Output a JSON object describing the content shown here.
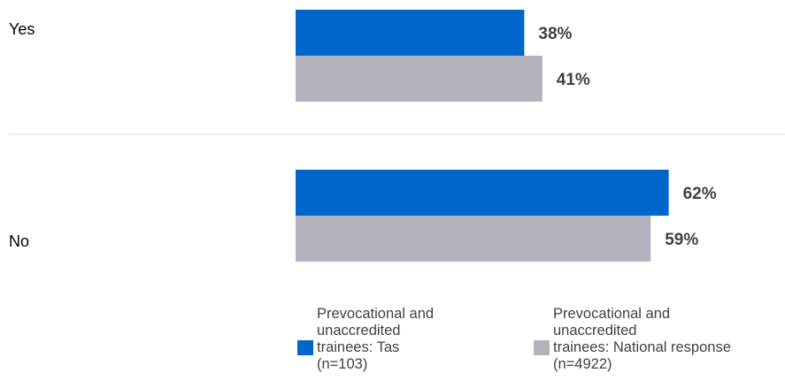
{
  "chart_data": {
    "type": "bar",
    "orientation": "horizontal",
    "categories": [
      "Yes",
      "No"
    ],
    "series": [
      {
        "name": "Prevocational and\nunaccredited\ntrainees: Tas\n(n=103)",
        "values": [
          38,
          62
        ],
        "color": "#0066CC"
      },
      {
        "name": "Prevocational and\nunaccredited\ntrainees: National response\n(n=4922)",
        "values": [
          41,
          59
        ],
        "color": "#B2B2BD"
      }
    ],
    "value_labels": [
      [
        "38%",
        "62%"
      ],
      [
        "41%",
        "59%"
      ]
    ],
    "xlim": [
      0,
      100
    ],
    "legend_position": "bottom",
    "grid": false,
    "category_separator_color": "#D9D9D9"
  }
}
